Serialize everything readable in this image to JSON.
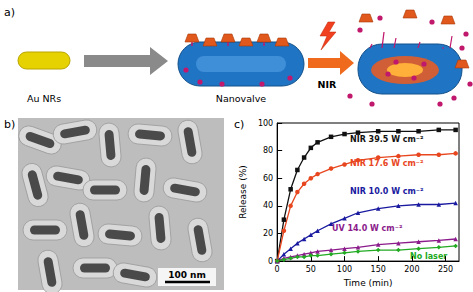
{
  "figure": {
    "a": {
      "label": "a)",
      "steps": [
        "Au NRs",
        "Nanovalve"
      ],
      "stimulus": "NIR"
    },
    "b": {
      "label": "b)",
      "scale_bar": "100 nm"
    },
    "c": {
      "label": "c)"
    }
  },
  "chart_data": {
    "type": "line",
    "x_label": "Time (min)",
    "y_label": "Release (%)",
    "x": [
      0,
      10,
      20,
      30,
      40,
      50,
      60,
      80,
      100,
      120,
      150,
      180,
      210,
      240,
      265
    ],
    "series": [
      {
        "name": "NIR 39.5 W cm⁻²",
        "color": "#111111",
        "marker": "square",
        "values": [
          0,
          30,
          52,
          66,
          75,
          82,
          86,
          90,
          92,
          93,
          94,
          94,
          94,
          95,
          95
        ]
      },
      {
        "name": "NIR 17.6 W cm⁻²",
        "color": "#e8461e",
        "marker": "circle",
        "values": [
          0,
          22,
          40,
          50,
          56,
          60,
          63,
          67,
          70,
          73,
          75,
          76,
          77,
          77,
          78
        ]
      },
      {
        "name": "NIR 10.0 W cm⁻²",
        "color": "#1a1aa0",
        "marker": "triangle",
        "values": [
          0,
          5,
          9,
          13,
          16,
          19,
          22,
          27,
          31,
          35,
          38,
          40,
          41,
          41,
          42
        ]
      },
      {
        "name": "UV 14.0 W cm⁻²",
        "color": "#8b1a8b",
        "marker": "triangle",
        "values": [
          0,
          2,
          3,
          4,
          5,
          6,
          7,
          8,
          9,
          10,
          12,
          13,
          14,
          15,
          16
        ]
      },
      {
        "name": "No laser",
        "color": "#22aa22",
        "marker": "diamond",
        "values": [
          0,
          1,
          2,
          3,
          3,
          4,
          4,
          5,
          6,
          7,
          8,
          8,
          9,
          10,
          11
        ]
      }
    ],
    "xlim": [
      0,
      270
    ],
    "xticks": [
      0,
      50,
      100,
      150,
      200,
      250
    ],
    "ylim": [
      0,
      100
    ],
    "yticks": [
      0,
      20,
      40,
      60,
      80,
      100
    ],
    "grid": false
  }
}
